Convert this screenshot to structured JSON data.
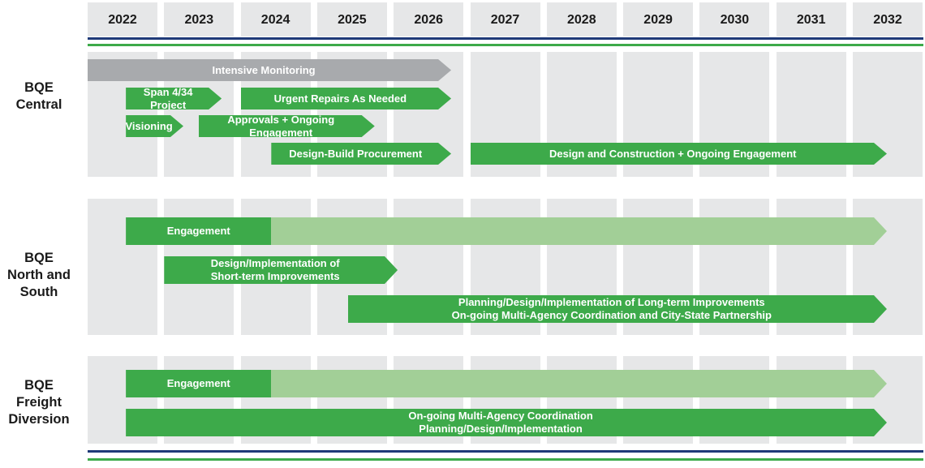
{
  "years": [
    "2022",
    "2023",
    "2024",
    "2025",
    "2026",
    "2027",
    "2028",
    "2029",
    "2030",
    "2031",
    "2032"
  ],
  "rows": [
    {
      "id": "central",
      "label": "BQE\nCentral"
    },
    {
      "id": "north-south",
      "label": "BQE\nNorth and\nSouth"
    },
    {
      "id": "freight",
      "label": "BQE\nFreight\nDiversion"
    }
  ],
  "colors": {
    "green": "#3daa4a",
    "light_green": "#a2cf97",
    "gray": "#a8aaad",
    "navy": "#1f3a78",
    "cell": "#e6e7e8"
  },
  "bars": [
    {
      "row": "central",
      "start": 2022,
      "end": 2026.9,
      "label": "Intensive Monitoring",
      "color": "gray",
      "arrow": true
    },
    {
      "row": "central",
      "start": 2022.5,
      "end": 2023.9,
      "label": "Span 4/34 Project",
      "color": "green",
      "arrow": true
    },
    {
      "row": "central",
      "start": 2024,
      "end": 2026.9,
      "label": "Urgent Repairs As Needed",
      "color": "green",
      "arrow": true
    },
    {
      "row": "central",
      "start": 2022.5,
      "end": 2023.4,
      "label": "Visioning",
      "color": "green",
      "arrow": true
    },
    {
      "row": "central",
      "start": 2023.45,
      "end": 2025.9,
      "label": "Approvals + Ongoing Engagement",
      "color": "green",
      "arrow": true
    },
    {
      "row": "central",
      "start": 2024.4,
      "end": 2026.9,
      "label": "Design-Build Procurement",
      "color": "green",
      "arrow": true
    },
    {
      "row": "central",
      "start": 2027,
      "end": 2033,
      "label": "Design and Construction + Ongoing Engagement",
      "color": "green",
      "arrow": true
    },
    {
      "row": "north-south",
      "start": 2022.5,
      "end": 2033,
      "label": "Engagement",
      "color": "light_green",
      "arrow": true,
      "solid_end": 2024.4
    },
    {
      "row": "north-south",
      "start": 2023,
      "end": 2026.2,
      "label": "Design/Implementation of\nShort-term Improvements",
      "color": "green",
      "arrow": true
    },
    {
      "row": "north-south",
      "start": 2025.4,
      "end": 2033,
      "label": "Planning/Design/Implementation of Long-term Improvements\nOn-going Multi-Agency Coordination and City-State Partnership",
      "color": "green",
      "arrow": true
    },
    {
      "row": "freight",
      "start": 2022.5,
      "end": 2033,
      "label": "Engagement",
      "color": "light_green",
      "arrow": true,
      "solid_end": 2024.4
    },
    {
      "row": "freight",
      "start": 2022.5,
      "end": 2033,
      "label": "On-going Multi-Agency Coordination\nPlanning/Design/Implementation",
      "color": "green",
      "arrow": true
    }
  ]
}
